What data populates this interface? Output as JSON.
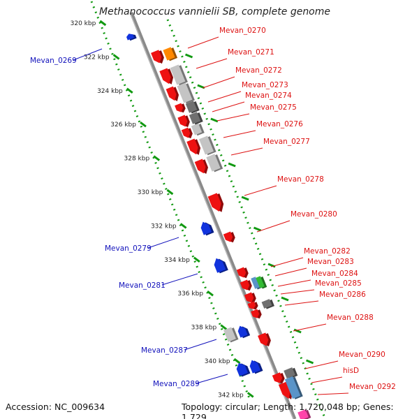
{
  "title": "Methanococcus vannielii SB, complete genome",
  "footer": {
    "accession": "Accession: NC_009634",
    "topology": "Topology: circular; Length: 1,720,048 bp; Genes: 1,729"
  },
  "colors": {
    "forward_label": "#dd1111",
    "reverse_label": "#1111bb",
    "gene_red": "#ee1111",
    "gene_blue": "#1133dd",
    "gene_orange": "#ff8800",
    "gene_gray_light": "#c4c4c4",
    "gene_gray_dark": "#707070",
    "gene_green": "#33bb33",
    "gene_steel": "#5a94c8",
    "gene_pink": "#ff44aa",
    "axis_line": "#8a8a8a",
    "tick_green": "#119911"
  },
  "scale": {
    "unit": "kbp",
    "ticks": [
      320,
      322,
      324,
      326,
      328,
      330,
      332,
      334,
      336,
      338,
      340,
      342
    ],
    "tick_labels": [
      "320 kbp",
      "322 kbp",
      "324 kbp",
      "326 kbp",
      "328 kbp",
      "330 kbp",
      "332 kbp",
      "334 kbp",
      "336 kbp",
      "338 kbp",
      "340 kbp",
      "342 kbp"
    ]
  },
  "forward_labels": [
    "Mevan_0270",
    "Mevan_0271",
    "Mevan_0272",
    "Mevan_0273",
    "Mevan_0274",
    "Mevan_0275",
    "Mevan_0276",
    "Mevan_0277",
    "Mevan_0278",
    "Mevan_0280",
    "Mevan_0282",
    "Mevan_0283",
    "Mevan_0284",
    "Mevan_0285",
    "Mevan_0286",
    "Mevan_0288",
    "Mevan_0290",
    "hisD",
    "Mevan_0292"
  ],
  "reverse_labels": [
    "Mevan_0269",
    "Mevan_0279",
    "Mevan_0281",
    "Mevan_0287",
    "Mevan_0289"
  ]
}
